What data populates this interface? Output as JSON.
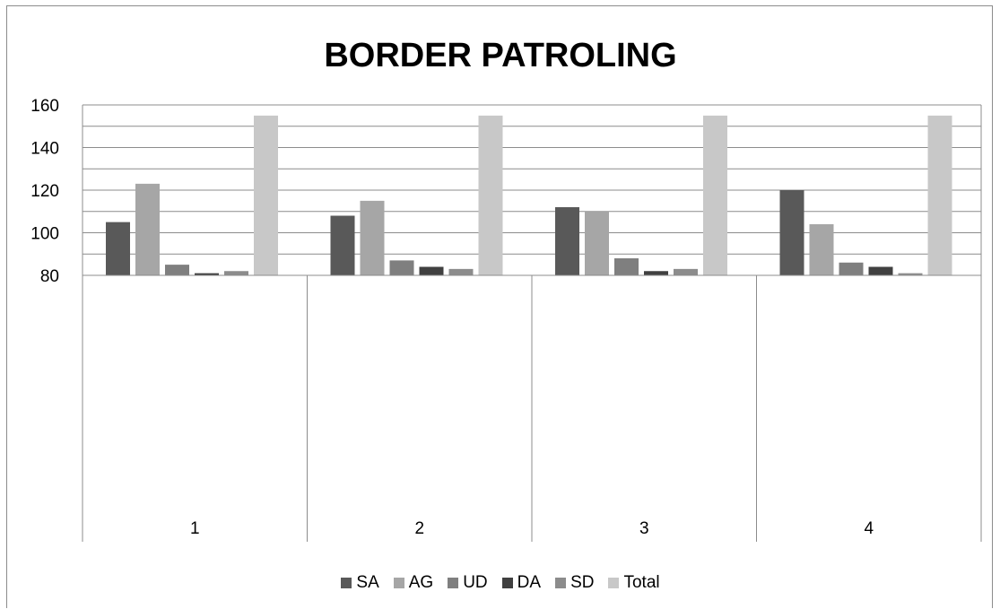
{
  "chart_data": {
    "type": "bar",
    "title": "BORDER PATROLING",
    "xlabel": "",
    "ylabel": "",
    "categories": [
      "1",
      "2",
      "3",
      "4"
    ],
    "y_ticks": [
      "80",
      "100",
      "120",
      "140",
      "160"
    ],
    "ylim": [
      80,
      160
    ],
    "grid": true,
    "legend_position": "bottom",
    "series": [
      {
        "name": "SA",
        "color": "#595959",
        "values": [
          105,
          108,
          112,
          120
        ]
      },
      {
        "name": "AG",
        "color": "#a6a6a6",
        "values": [
          123,
          115,
          110,
          104
        ]
      },
      {
        "name": "UD",
        "color": "#7f7f7f",
        "values": [
          85,
          87,
          88,
          86
        ]
      },
      {
        "name": "DA",
        "color": "#404040",
        "values": [
          81,
          84,
          82,
          84
        ]
      },
      {
        "name": "SD",
        "color": "#8c8c8c",
        "values": [
          82,
          83,
          83,
          81
        ]
      },
      {
        "name": "Total",
        "color": "#c8c8c8",
        "values": [
          155,
          155,
          155,
          155
        ]
      }
    ]
  }
}
